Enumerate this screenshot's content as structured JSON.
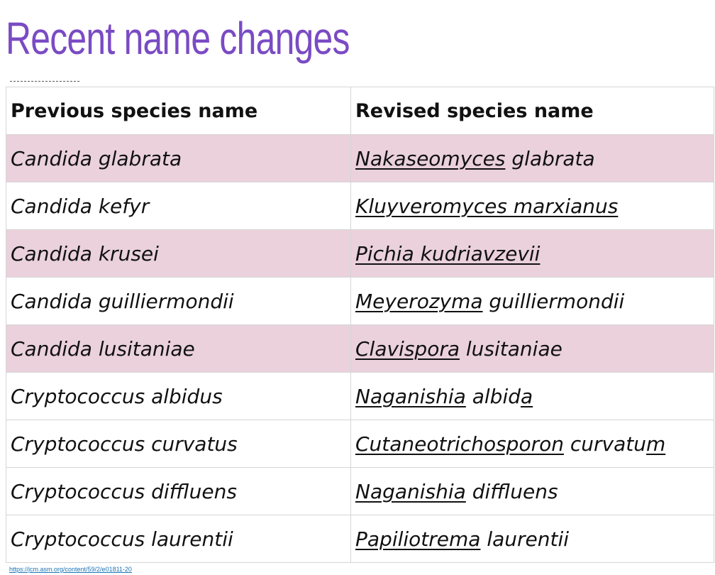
{
  "slide": {
    "title": "Recent name changes",
    "source_link": "https://jcm.asm.org/content/59/2/e01811-20"
  },
  "table": {
    "headers": {
      "previous": "Previous species name",
      "revised": "Revised species name"
    },
    "rows": [
      {
        "previous": "Candida glabrata",
        "revised": [
          {
            "text": "Nakaseomyces",
            "underline": true
          },
          {
            "text": " glabrata",
            "underline": false
          }
        ],
        "shaded": true
      },
      {
        "previous": "Candida kefyr",
        "revised": [
          {
            "text": "Kluyveromyces marxianus",
            "underline": true
          }
        ],
        "shaded": false
      },
      {
        "previous": "Candida krusei",
        "revised": [
          {
            "text": "Pichia kudriavzevii",
            "underline": true
          }
        ],
        "shaded": true
      },
      {
        "previous": "Candida guilliermondii",
        "revised": [
          {
            "text": "Meyerozyma",
            "underline": true
          },
          {
            "text": " guilliermondii",
            "underline": false
          }
        ],
        "shaded": false
      },
      {
        "previous": "Candida lusitaniae",
        "revised": [
          {
            "text": "Clavispora",
            "underline": true
          },
          {
            "text": " lusitaniae",
            "underline": false
          }
        ],
        "shaded": true
      },
      {
        "previous": "Cryptococcus albidus",
        "revised": [
          {
            "text": "Naganishia",
            "underline": true
          },
          {
            "text": " albid",
            "underline": false
          },
          {
            "text": "a",
            "underline": true
          }
        ],
        "shaded": false
      },
      {
        "previous": "Cryptococcus curvatus",
        "revised": [
          {
            "text": "Cutaneotrichosporon",
            "underline": true
          },
          {
            "text": " curvatu",
            "underline": false
          },
          {
            "text": "m",
            "underline": true
          }
        ],
        "shaded": false
      },
      {
        "previous": "Cryptococcus diffluens",
        "revised": [
          {
            "text": "Naganishia",
            "underline": true
          },
          {
            "text": " diffluens",
            "underline": false
          }
        ],
        "shaded": false
      },
      {
        "previous": "Cryptococcus laurentii",
        "revised": [
          {
            "text": "Papiliotrema",
            "underline": true
          },
          {
            "text": " laurentii",
            "underline": false
          }
        ],
        "shaded": false
      }
    ]
  },
  "colors": {
    "title": "#7a4bc4",
    "row_shade": "#ead1dc",
    "link": "#1a73b5"
  }
}
